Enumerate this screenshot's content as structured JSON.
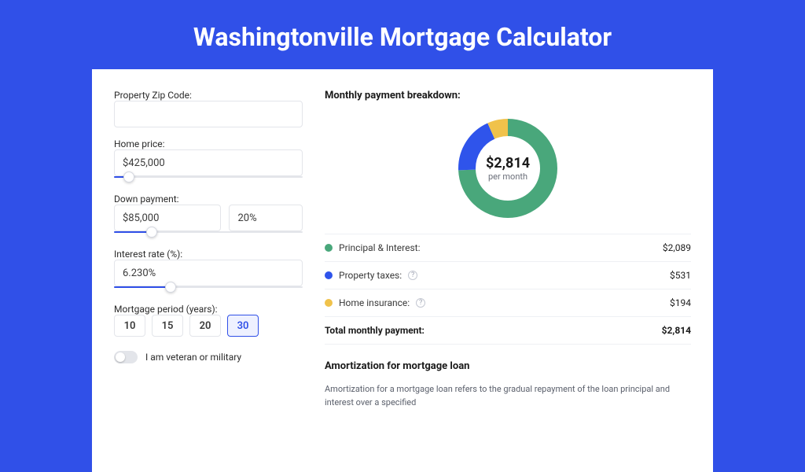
{
  "page": {
    "title": "Washingtonville Mortgage Calculator",
    "background_color": "#3050e8",
    "card_background": "#ffffff"
  },
  "form": {
    "zip": {
      "label": "Property Zip Code:",
      "value": ""
    },
    "home_price": {
      "label": "Home price:",
      "value": "$425,000",
      "slider_pct": 8
    },
    "down_payment": {
      "label": "Down payment:",
      "amount": "$85,000",
      "percent": "20%",
      "slider_pct": 20
    },
    "interest_rate": {
      "label": "Interest rate (%):",
      "value": "6.230%",
      "slider_pct": 30
    },
    "period": {
      "label": "Mortgage period (years):",
      "options": [
        "10",
        "15",
        "20",
        "30"
      ],
      "selected": "30"
    },
    "veteran": {
      "label": "I am veteran or military",
      "checked": false
    }
  },
  "breakdown": {
    "title": "Monthly payment breakdown:",
    "center_amount": "$2,814",
    "center_label": "per month",
    "donut": {
      "radius": 52,
      "stroke_width": 22,
      "segments": [
        {
          "key": "principal_interest",
          "pct": 74.3,
          "color": "#49a77b"
        },
        {
          "key": "property_taxes",
          "pct": 18.9,
          "color": "#2f54eb"
        },
        {
          "key": "home_insurance",
          "pct": 6.8,
          "color": "#f0c24b"
        }
      ]
    },
    "rows": [
      {
        "key": "principal_interest",
        "label": "Principal & Interest:",
        "value": "$2,089",
        "color": "#49a77b",
        "info": false
      },
      {
        "key": "property_taxes",
        "label": "Property taxes:",
        "value": "$531",
        "color": "#2f54eb",
        "info": true
      },
      {
        "key": "home_insurance",
        "label": "Home insurance:",
        "value": "$194",
        "color": "#f0c24b",
        "info": true
      }
    ],
    "total": {
      "label": "Total monthly payment:",
      "value": "$2,814"
    }
  },
  "amortization": {
    "title": "Amortization for mortgage loan",
    "text": "Amortization for a mortgage loan refers to the gradual repayment of the loan principal and interest over a specified"
  }
}
